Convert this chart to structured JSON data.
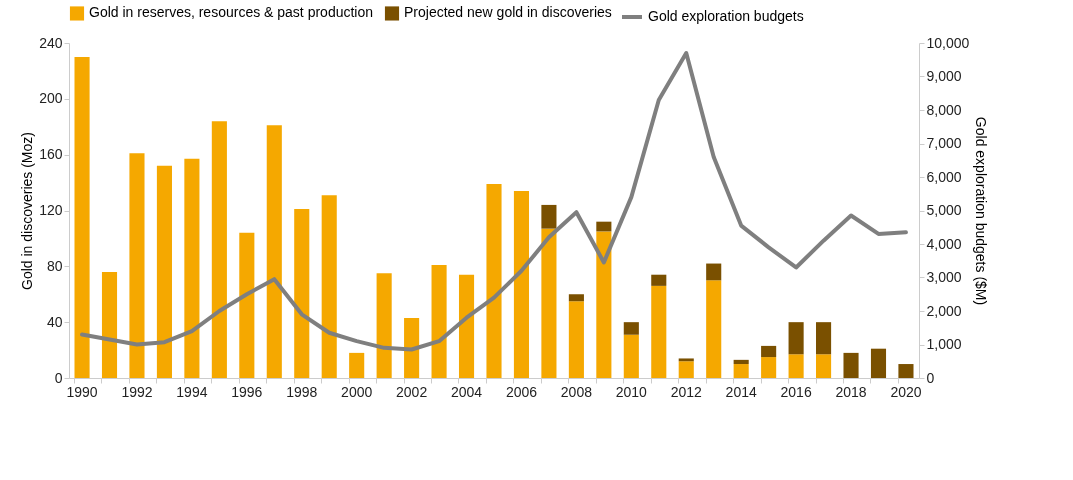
{
  "chart_data": {
    "type": "bar",
    "stacked": true,
    "legend": "top",
    "categories": [
      "1990",
      null,
      "1992",
      null,
      "1994",
      null,
      "1996",
      null,
      "1998",
      null,
      "2000",
      null,
      "2002",
      null,
      "2004",
      null,
      "2006",
      null,
      "2008",
      null,
      "2010",
      null,
      "2012",
      null,
      "2014",
      null,
      "2016",
      null,
      "2018",
      null,
      "2020"
    ],
    "ylabel": "Gold in discoveries (Moz)",
    "y2label": "Gold exploration budgets ($M)",
    "ylim": [
      0,
      240
    ],
    "yticks": [
      0,
      40,
      80,
      120,
      160,
      200,
      240
    ],
    "y2lim": [
      0,
      10000
    ],
    "y2ticks": [
      0,
      {
        "value": 1000,
        "label": "1,000"
      },
      {
        "value": 2000,
        "label": "2,000"
      },
      {
        "value": 3000,
        "label": "3,000"
      },
      {
        "value": 4000,
        "label": "4,000"
      },
      {
        "value": 5000,
        "label": "5,000"
      },
      {
        "value": 6000,
        "label": "6,000"
      },
      {
        "value": 7000,
        "label": "7,000"
      },
      {
        "value": 8000,
        "label": "8,000"
      },
      {
        "value": 9000,
        "label": "9,000"
      },
      {
        "value": 10000,
        "label": "10,000"
      }
    ],
    "series": [
      {
        "name": "Gold in reserves, resources & past production",
        "color": "#f5a800",
        "values": [
          230,
          76,
          161,
          152,
          157,
          184,
          104,
          181,
          121,
          131,
          18,
          75,
          43,
          81,
          74,
          139,
          134,
          107,
          55,
          105,
          31,
          66,
          12,
          70,
          10,
          15,
          17,
          17,
          null,
          null,
          null
        ]
      },
      {
        "name": "Projected new gold in discoveries",
        "color": "#7a5000",
        "values": [
          null,
          null,
          null,
          null,
          null,
          null,
          null,
          null,
          null,
          null,
          null,
          null,
          null,
          null,
          null,
          null,
          null,
          17,
          5,
          7,
          9,
          8,
          2,
          12,
          3,
          8,
          23,
          23,
          18,
          21,
          10
        ]
      },
      {
        "name": "Gold exploration budgets",
        "type": "line",
        "axis": "y2",
        "color": "#7f7f7f",
        "values": [
          1300,
          1150,
          1000,
          1070,
          1400,
          2000,
          2500,
          2950,
          1900,
          1350,
          1100,
          900,
          850,
          1100,
          1800,
          2400,
          3200,
          4200,
          4950,
          3450,
          5400,
          8300,
          9700,
          6600,
          4550,
          3900,
          3300,
          4100,
          4850,
          4300,
          4350
        ]
      }
    ]
  }
}
